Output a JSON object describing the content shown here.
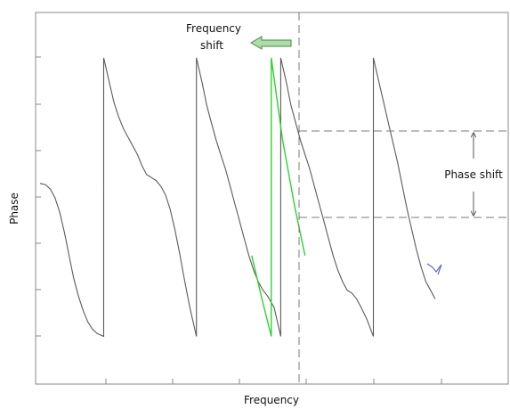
{
  "colors": {
    "trace": "#5a5a5a",
    "shifted": "#2fd12f",
    "tail": "#5b5bd6",
    "frame": "#8a8a8a",
    "guide": "#7a7a7a",
    "arrow_fill": "#a9dfa5",
    "arrow_stroke": "#4f7f4b"
  },
  "chart_data": {
    "type": "line",
    "xlabel": "Frequency",
    "ylabel": "Phase",
    "title": "",
    "xlim": [
      0,
      1
    ],
    "ylim": [
      0,
      1
    ],
    "grid": false,
    "tick_labels": false,
    "series": [
      {
        "name": "",
        "x": [
          0.0,
          0.012,
          0.022,
          0.032,
          0.042,
          0.052,
          0.062,
          0.072,
          0.082,
          0.092,
          0.102,
          0.112,
          0.122,
          0.136,
          0.136,
          0.148,
          0.158,
          0.168,
          0.178,
          0.188,
          0.198,
          0.208,
          0.218,
          0.228,
          0.238,
          0.248,
          0.258,
          0.268,
          0.278,
          0.288,
          0.298,
          0.308,
          0.32,
          0.334,
          0.334,
          0.346,
          0.356,
          0.366,
          0.376,
          0.386,
          0.396,
          0.406,
          0.416,
          0.426,
          0.436,
          0.446,
          0.456,
          0.466,
          0.476,
          0.486,
          0.5,
          0.514,
          0.514,
          0.526,
          0.536,
          0.546,
          0.556,
          0.566,
          0.576,
          0.586,
          0.596,
          0.606,
          0.616,
          0.626,
          0.636,
          0.646,
          0.656,
          0.666,
          0.676,
          0.686,
          0.698,
          0.712,
          0.712,
          0.724,
          0.734,
          0.744,
          0.754,
          0.764,
          0.774,
          0.784,
          0.794,
          0.804,
          0.814,
          0.824,
          0.834,
          0.844
        ],
        "y": [
          0.55,
          0.545,
          0.53,
          0.5,
          0.45,
          0.38,
          0.3,
          0.22,
          0.16,
          0.11,
          0.07,
          0.045,
          0.03,
          0.02,
          0.985,
          0.9,
          0.83,
          0.78,
          0.74,
          0.71,
          0.68,
          0.65,
          0.61,
          0.58,
          0.57,
          0.56,
          0.54,
          0.51,
          0.46,
          0.39,
          0.31,
          0.22,
          0.12,
          0.02,
          0.985,
          0.9,
          0.82,
          0.76,
          0.7,
          0.65,
          0.6,
          0.54,
          0.48,
          0.42,
          0.36,
          0.3,
          0.25,
          0.21,
          0.18,
          0.16,
          0.12,
          0.02,
          0.985,
          0.9,
          0.82,
          0.76,
          0.7,
          0.65,
          0.6,
          0.54,
          0.48,
          0.42,
          0.36,
          0.3,
          0.25,
          0.21,
          0.18,
          0.17,
          0.15,
          0.12,
          0.08,
          0.02,
          0.985,
          0.9,
          0.83,
          0.76,
          0.69,
          0.62,
          0.54,
          0.46,
          0.39,
          0.32,
          0.26,
          0.21,
          0.18,
          0.15
        ]
      },
      {
        "name": "",
        "x": [
          0.452,
          0.474,
          0.494,
          0.494,
          0.518,
          0.544,
          0.566
        ],
        "y": [
          0.3,
          0.15,
          0.02,
          0.985,
          0.7,
          0.47,
          0.3
        ]
      }
    ],
    "annotations": {
      "frequency_shift": "Frequency\nshift",
      "phase_shift": "Phase shift"
    }
  }
}
